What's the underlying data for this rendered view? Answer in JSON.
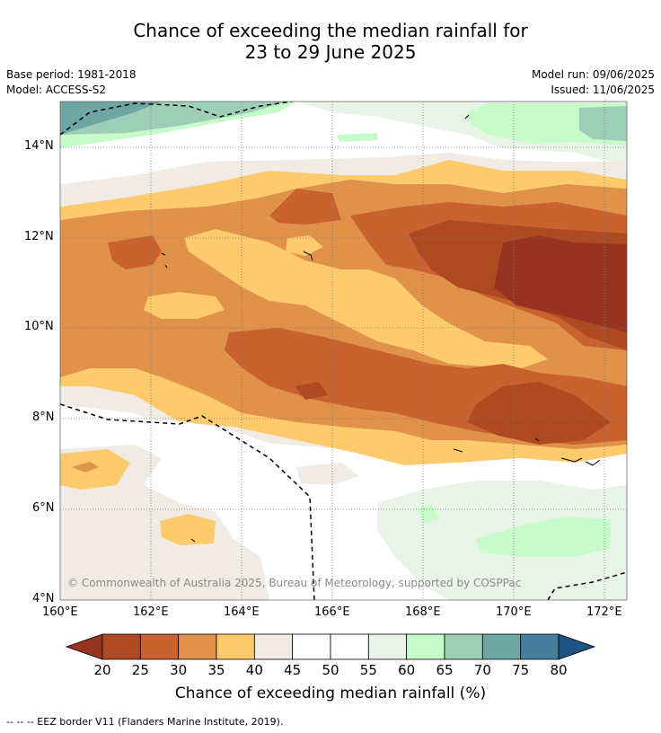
{
  "title_line1": "Chance of exceeding the median rainfall for",
  "title_line2": "23 to 29 June 2025",
  "base_period": "Base period: 1981-2018",
  "model": "Model: ACCESS-S2",
  "model_run": "Model run: 09/06/2025",
  "issued": "Issued: 11/06/2025",
  "copyright": "© Commonwealth of Australia 2025, Bureau of Meteorology, supported by COSPPac",
  "lat_labels": [
    "14°N",
    "12°N",
    "10°N",
    "8°N",
    "6°N",
    "4°N"
  ],
  "lon_labels": [
    "160°E",
    "162°E",
    "164°E",
    "166°E",
    "168°E",
    "170°E",
    "172°E"
  ],
  "colorbar": {
    "title": "Chance of exceeding median rainfall (%)",
    "ticks": [
      "20",
      "25",
      "30",
      "35",
      "40",
      "45",
      "50",
      "55",
      "60",
      "65",
      "70",
      "75",
      "80"
    ],
    "colors": [
      "#ad4a22",
      "#c9622f",
      "#e0914a",
      "#fdcb6b",
      "#f0ebe5",
      "#ffffff",
      "#ffffff",
      "#e9f4e9",
      "#c7fbc9",
      "#9dcfb8",
      "#6ea6a4",
      "#447e9d"
    ],
    "under_color": "#963421",
    "over_color": "#1c5584"
  },
  "footer": "--  --  -- EEZ border V11 (Flanders Marine Institute, 2019)."
}
